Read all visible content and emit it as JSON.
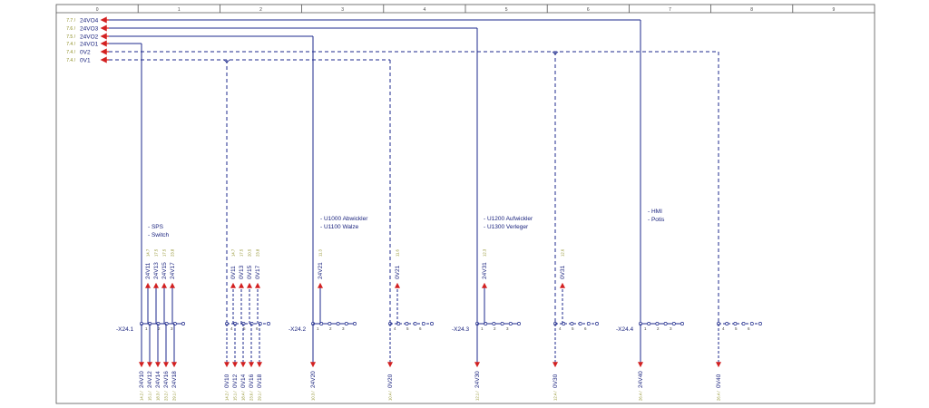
{
  "column_numbers": [
    "0",
    "1",
    "2",
    "3",
    "4",
    "5",
    "6",
    "7",
    "8",
    "9"
  ],
  "supply_rails": [
    {
      "ref": "7.7 /",
      "label": "24VO4"
    },
    {
      "ref": "7.6 /",
      "label": "24VO3"
    },
    {
      "ref": "7.5 /",
      "label": "24VO2"
    },
    {
      "ref": "7.4 /",
      "label": "24VO1"
    },
    {
      "ref": "7.4 /",
      "label": "0V2"
    },
    {
      "ref": "7.4 /",
      "label": "0V1"
    }
  ],
  "consumer_notes": {
    "g1": [
      "- SPS",
      "- Switch"
    ],
    "g2": [
      "- U1000 Abwickler",
      "- U1100 Walze"
    ],
    "g3": [
      "- U1200 Aufwickler",
      "- U1300 Verleger"
    ],
    "g4": [
      "- HMI",
      "- Potis"
    ]
  },
  "terminal_strips": [
    "-X24.1",
    "-X24.2",
    "-X24.3",
    "-X24.4"
  ],
  "terminal_numbers": {
    "g1": [
      "1",
      "2",
      "3"
    ],
    "g1b": [
      "4",
      "5",
      "6"
    ],
    "g2": [
      "1",
      "2",
      "3"
    ],
    "g2b": [
      "4",
      "5",
      "6"
    ],
    "g3": [
      "1",
      "2",
      "3"
    ],
    "g3b": [
      "4",
      "5",
      "6"
    ],
    "g4": [
      "1",
      "2",
      "3"
    ],
    "g4b": [
      "4",
      "5",
      "6"
    ]
  },
  "outputs_up": {
    "g1": {
      "labels": [
        "24V11",
        "24V13",
        "24V15",
        "24V17"
      ],
      "refs": [
        "14.7",
        "17.5",
        "17.5",
        "23.8"
      ]
    },
    "g1b": {
      "labels": [
        "0V11",
        "0V13",
        "0V15",
        "0V17"
      ],
      "refs": [
        "14.7",
        "17.5",
        "20.5",
        "23.8"
      ]
    },
    "g2": {
      "labels": [
        "24V21"
      ],
      "refs": [
        "11.3"
      ]
    },
    "g2b": {
      "labels": [
        "0V21"
      ],
      "refs": [
        "11.6"
      ]
    },
    "g3": {
      "labels": [
        "24V31"
      ],
      "refs": [
        "12.3"
      ]
    },
    "g3b": {
      "labels": [
        "0V31"
      ],
      "refs": [
        "12.6"
      ]
    }
  },
  "outputs_down": {
    "g1": {
      "labels": [
        "24V10",
        "24V12",
        "24V14",
        "24V16",
        "24V18"
      ],
      "refs": [
        "14.2 /",
        "15.1 /",
        "18.3 /",
        "23.2 /",
        "29.1 /"
      ]
    },
    "g1b": {
      "labels": [
        "0V10",
        "0V12",
        "0V14",
        "0V16",
        "0V18"
      ],
      "refs": [
        "14.2 /",
        "15.1 /",
        "18.4 /",
        "23.6 /",
        "29.1 /"
      ]
    },
    "g2": {
      "labels": [
        "24V20"
      ],
      "refs": [
        "10.3 /"
      ]
    },
    "g2b": {
      "labels": [
        "0V20"
      ],
      "refs": [
        "10.4 /"
      ]
    },
    "g3": {
      "labels": [
        "24V30"
      ],
      "refs": [
        "12.1 /"
      ]
    },
    "g3b": {
      "labels": [
        "0V30"
      ],
      "refs": [
        "12.4 /"
      ]
    },
    "g4": {
      "labels": [
        "24V40"
      ],
      "refs": [
        "26.4 /"
      ]
    },
    "g4b": {
      "labels": [
        "0V40"
      ],
      "refs": [
        "26.4 /"
      ]
    }
  },
  "colors": {
    "wire_24v": "#1e2a8c",
    "wire_0v": "#1e2a8c",
    "arrow": "#d32020",
    "label": "#1a237e",
    "ref": "#8a8a1e",
    "frame": "#555555"
  }
}
